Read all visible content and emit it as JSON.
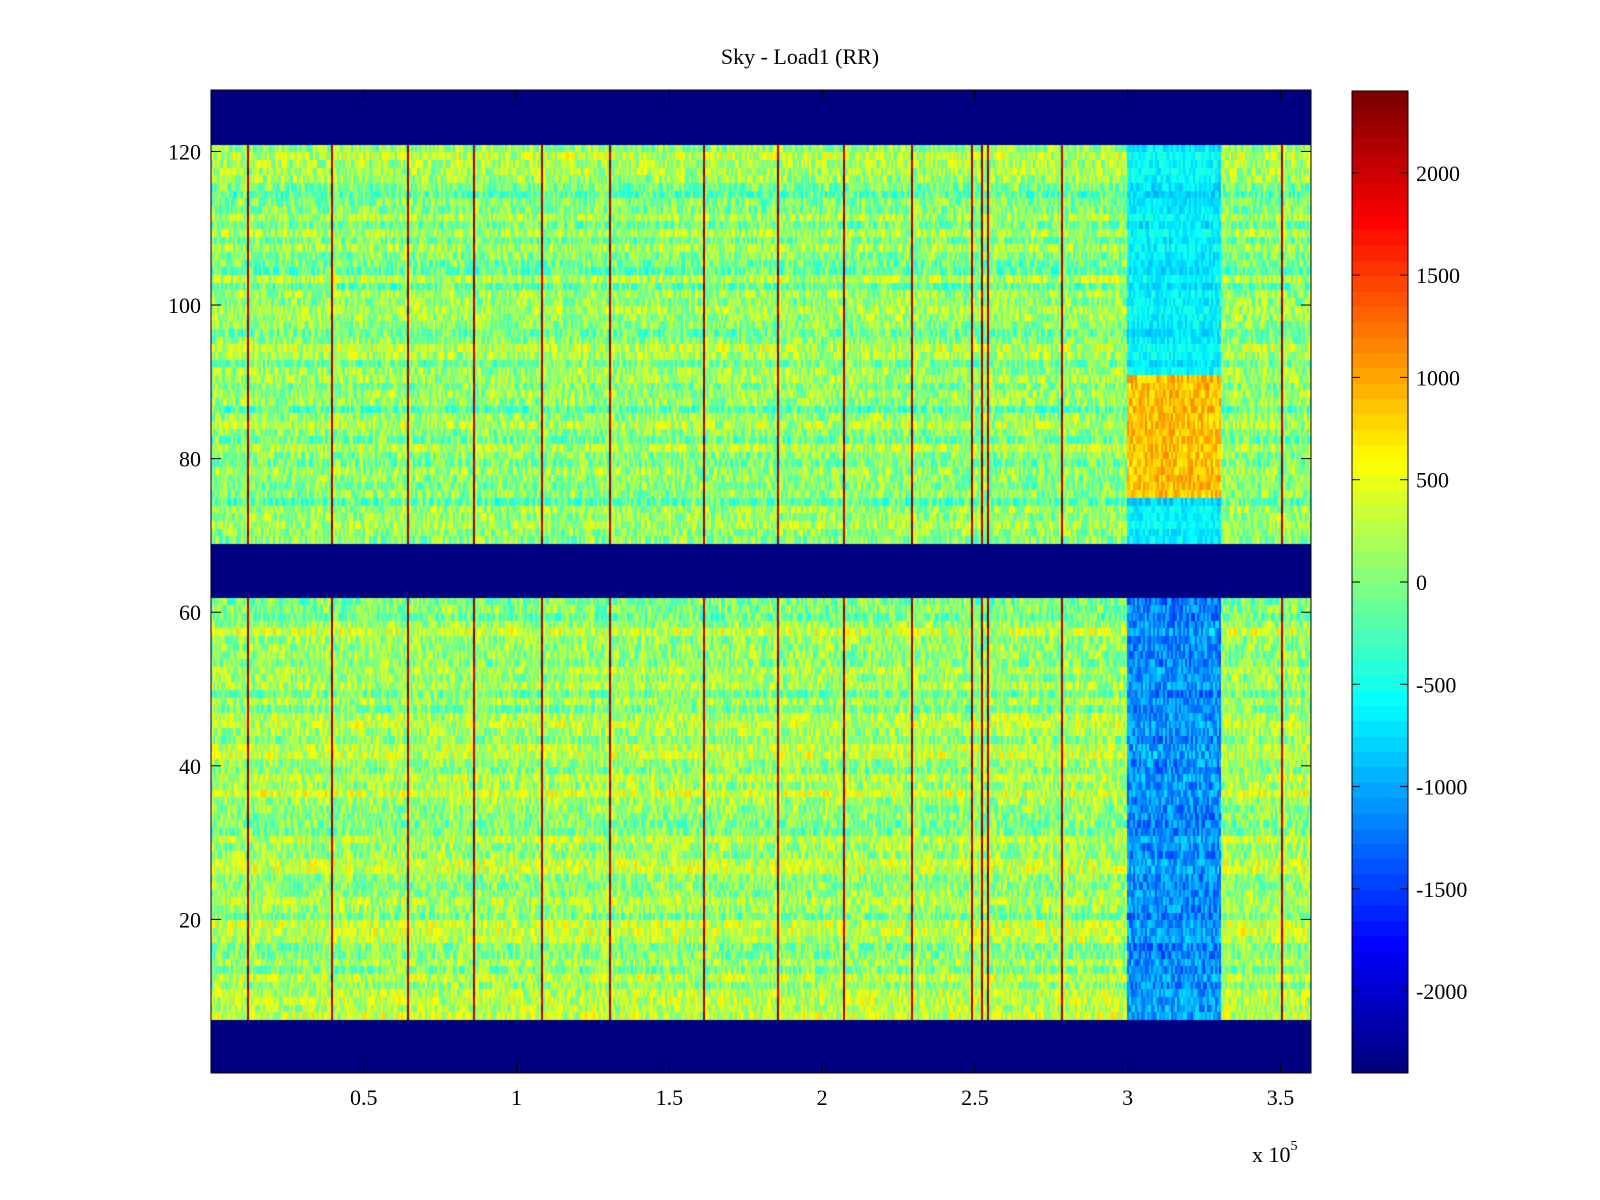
{
  "chart_data": {
    "type": "heatmap",
    "title": "Sky - Load1 (RR)",
    "xlabel": "",
    "ylabel": "",
    "x_multiplier": {
      "base": "x 10",
      "exponent": "5"
    },
    "xlim": [
      0,
      3.6
    ],
    "ylim": [
      0,
      128
    ],
    "x_ticks": [
      0.5,
      1,
      1.5,
      2,
      2.5,
      3,
      3.5
    ],
    "x_tick_labels": [
      "0.5",
      "1",
      "1.5",
      "2",
      "2.5",
      "3",
      "3.5"
    ],
    "y_ticks": [
      20,
      40,
      60,
      80,
      100,
      120
    ],
    "y_tick_labels": [
      "20",
      "40",
      "60",
      "80",
      "100",
      "120"
    ],
    "colormap": "jet",
    "clim": [
      -2400,
      2400
    ],
    "colorbar_ticks": [
      2000,
      1500,
      1000,
      500,
      0,
      -500,
      -1000,
      -1500,
      -2000
    ],
    "colorbar_tick_labels": [
      "2000",
      "1500",
      "1000",
      "500",
      "0",
      "-500",
      "-1000",
      "-1500",
      "-2000"
    ],
    "masked_rows": [
      [
        0,
        7
      ],
      [
        62,
        69
      ],
      [
        121,
        128
      ]
    ],
    "masked_value": -2400,
    "bright_columns_x": [
      0.12,
      0.39,
      0.64,
      0.86,
      1.08,
      1.3,
      1.61,
      1.85,
      2.07,
      2.29,
      2.49,
      2.52,
      2.54,
      2.78,
      3.5
    ],
    "deep_negative_band": {
      "x_range": [
        3.0,
        3.3
      ],
      "level_bottom": -1500,
      "level_top": -900
    },
    "low_block_mean": 150,
    "upper_block_mean": 50
  },
  "colors": {
    "masked": "#00008f",
    "axis": "#000000",
    "background": "#ffffff"
  }
}
